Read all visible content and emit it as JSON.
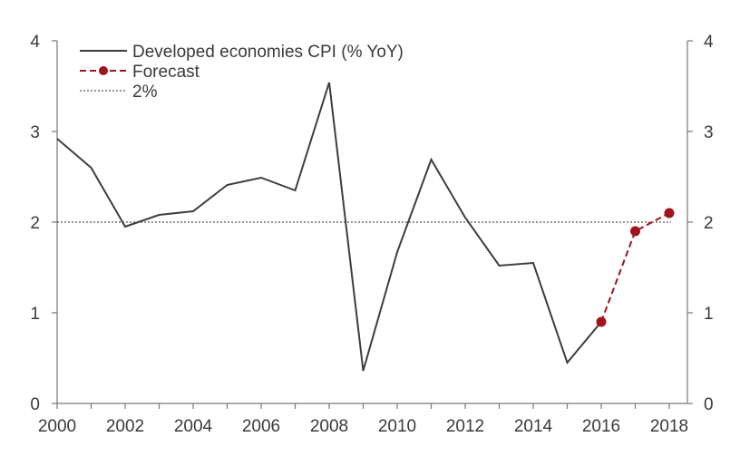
{
  "chart_data": {
    "type": "line",
    "title": "",
    "xlabel": "",
    "ylabel": "",
    "xlim": [
      2000,
      2018
    ],
    "ylim": [
      0,
      4
    ],
    "x_ticks": [
      "2000",
      "2002",
      "2004",
      "2006",
      "2008",
      "2010",
      "2012",
      "2014",
      "2016",
      "2018"
    ],
    "y_ticks_left": [
      "0",
      "1",
      "2",
      "3",
      "4"
    ],
    "y_ticks_right": [
      "0",
      "1",
      "2",
      "3",
      "4"
    ],
    "legend": {
      "position": "top-left",
      "entries": [
        {
          "label": "Developed economies CPI (% YoY)",
          "style": "solid"
        },
        {
          "label": "Forecast",
          "style": "dashed-markers"
        },
        {
          "label": "2%",
          "style": "dotted"
        }
      ]
    },
    "series": [
      {
        "name": "Developed economies CPI (% YoY)",
        "color": "#3d3d3d",
        "x": [
          2000,
          2001,
          2002,
          2003,
          2004,
          2005,
          2006,
          2007,
          2008,
          2009,
          2010,
          2011,
          2012,
          2013,
          2014,
          2015,
          2016
        ],
        "values": [
          2.92,
          2.6,
          1.95,
          2.08,
          2.12,
          2.41,
          2.49,
          2.35,
          3.54,
          0.36,
          1.67,
          2.69,
          2.05,
          1.52,
          1.55,
          0.45,
          0.9
        ]
      },
      {
        "name": "Forecast",
        "color": "#a0141e",
        "x": [
          2016,
          2017,
          2018
        ],
        "values": [
          0.9,
          1.9,
          2.1
        ]
      },
      {
        "name": "2%",
        "color": "#555555",
        "x": [
          2000,
          2018
        ],
        "values": [
          2.0,
          2.0
        ]
      }
    ]
  }
}
